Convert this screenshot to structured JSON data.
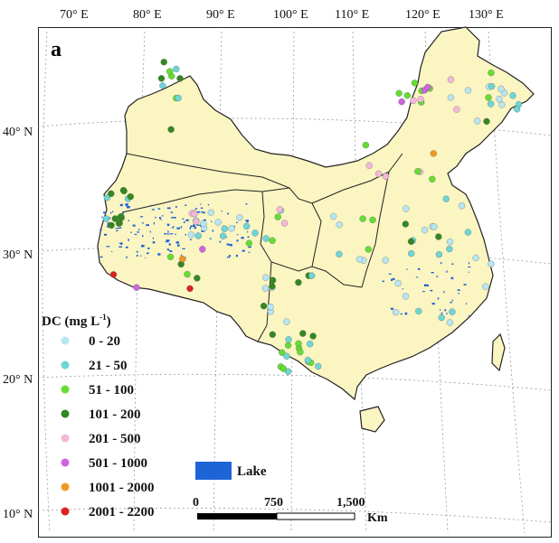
{
  "panel_label": "a",
  "top_labels": [
    "70° E",
    "80° E",
    "90° E",
    "100° E",
    "110° E",
    "120° E",
    "130° E"
  ],
  "left_labels": [
    "40° N",
    "30° N",
    "20° N",
    "10° N"
  ],
  "legend": {
    "title": "DC (mg L-1)",
    "title_main": "DC (mg L",
    "title_sup": "-1",
    "title_close": ")",
    "items": [
      {
        "label": "0 - 20",
        "color": "#b8e6f2"
      },
      {
        "label": "21 - 50",
        "color": "#6fd6d6"
      },
      {
        "label": "51 - 100",
        "color": "#66dd33"
      },
      {
        "label": "101 - 200",
        "color": "#338822"
      },
      {
        "label": "201 - 500",
        "color": "#f5b8d8"
      },
      {
        "label": "501 - 1000",
        "color": "#cc66dd"
      },
      {
        "label": "1001 - 2000",
        "color": "#ee9922"
      },
      {
        "label": "2001 - 2200",
        "color": "#dd2222"
      }
    ]
  },
  "lake_legend": {
    "label": "Lake",
    "color": "#1d64d6"
  },
  "scale_bar": {
    "ticks": [
      "0",
      "750",
      "1,500"
    ],
    "unit": "Km"
  },
  "colors": {
    "land": "#fbf5c2",
    "border": "#222222",
    "grid": "#888888"
  }
}
